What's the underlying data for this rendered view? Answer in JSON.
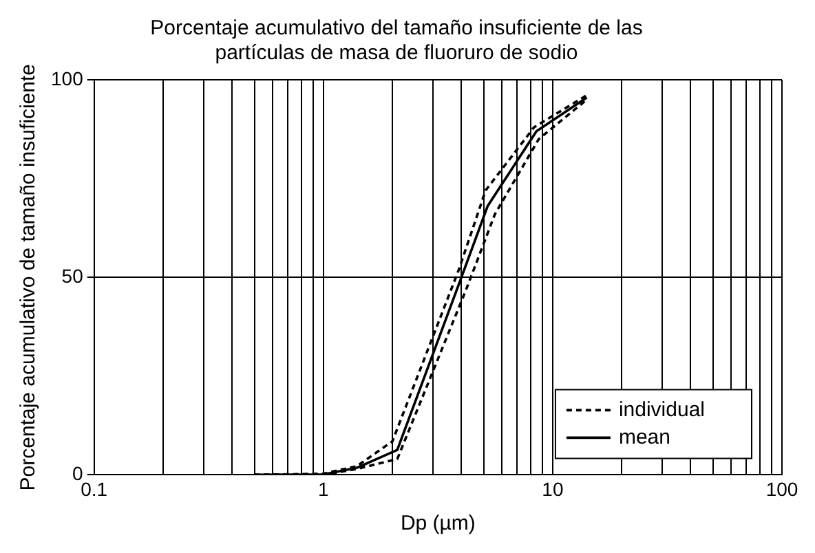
{
  "chart_data": {
    "type": "line",
    "title": "Porcentaje acumulativo del tamaño insuficiente de las\npartículas de masa de fluoruro de sodio",
    "xlabel": "Dp (µm)",
    "ylabel": "Porcentaje acumulativo de tamaño insuficiente",
    "log": "x",
    "xlim": [
      0.1,
      100
    ],
    "xticks": [
      0.1,
      {
        "value": 0.2,
        "label": null
      },
      {
        "value": 0.3,
        "label": null
      },
      {
        "value": 0.4,
        "label": null
      },
      {
        "value": 0.5,
        "label": null
      },
      {
        "value": 0.6,
        "label": null
      },
      {
        "value": 0.7,
        "label": null
      },
      {
        "value": 0.8,
        "label": null
      },
      {
        "value": 0.9,
        "label": null
      },
      1,
      {
        "value": 2,
        "label": null
      },
      {
        "value": 3,
        "label": null
      },
      {
        "value": 4,
        "label": null
      },
      {
        "value": 5,
        "label": null
      },
      {
        "value": 6,
        "label": null
      },
      {
        "value": 7,
        "label": null
      },
      {
        "value": 8,
        "label": null
      },
      {
        "value": 9,
        "label": null
      },
      10,
      {
        "value": 20,
        "label": null
      },
      {
        "value": 30,
        "label": null
      },
      {
        "value": 40,
        "label": null
      },
      {
        "value": 50,
        "label": null
      },
      {
        "value": 60,
        "label": null
      },
      {
        "value": 70,
        "label": null
      },
      {
        "value": 80,
        "label": null
      },
      {
        "value": 90,
        "label": null
      },
      100
    ],
    "ylim": [
      0,
      100
    ],
    "yticks": [
      0,
      50,
      100
    ],
    "grid": true,
    "legend": "bottom right",
    "marker": "none",
    "series": [
      {
        "name": "individual",
        "color": "#000000",
        "line_style": "dashed",
        "x": [
          0.5,
          1,
          1.4,
          2.0,
          3.9,
          5.1,
          8.3,
          14
        ],
        "values": [
          0,
          0.3,
          2.2,
          8.5,
          52,
          72,
          88,
          96
        ]
      },
      {
        "color": "#000000",
        "line_style": "dashed",
        "x": [
          0.5,
          1,
          1.4,
          2.1,
          4.2,
          5.6,
          8.7,
          14.1
        ],
        "values": [
          0,
          0,
          1.5,
          4,
          47,
          66,
          85,
          95
        ]
      },
      {
        "name": "mean",
        "color": "#000000",
        "line_style": "solid",
        "x": [
          0.5,
          1,
          1.4,
          2.1,
          4.0,
          5.2,
          8.5,
          14.1
        ],
        "values": [
          0,
          0.1,
          1.8,
          6.3,
          50,
          68,
          87,
          95.5
        ]
      }
    ]
  }
}
